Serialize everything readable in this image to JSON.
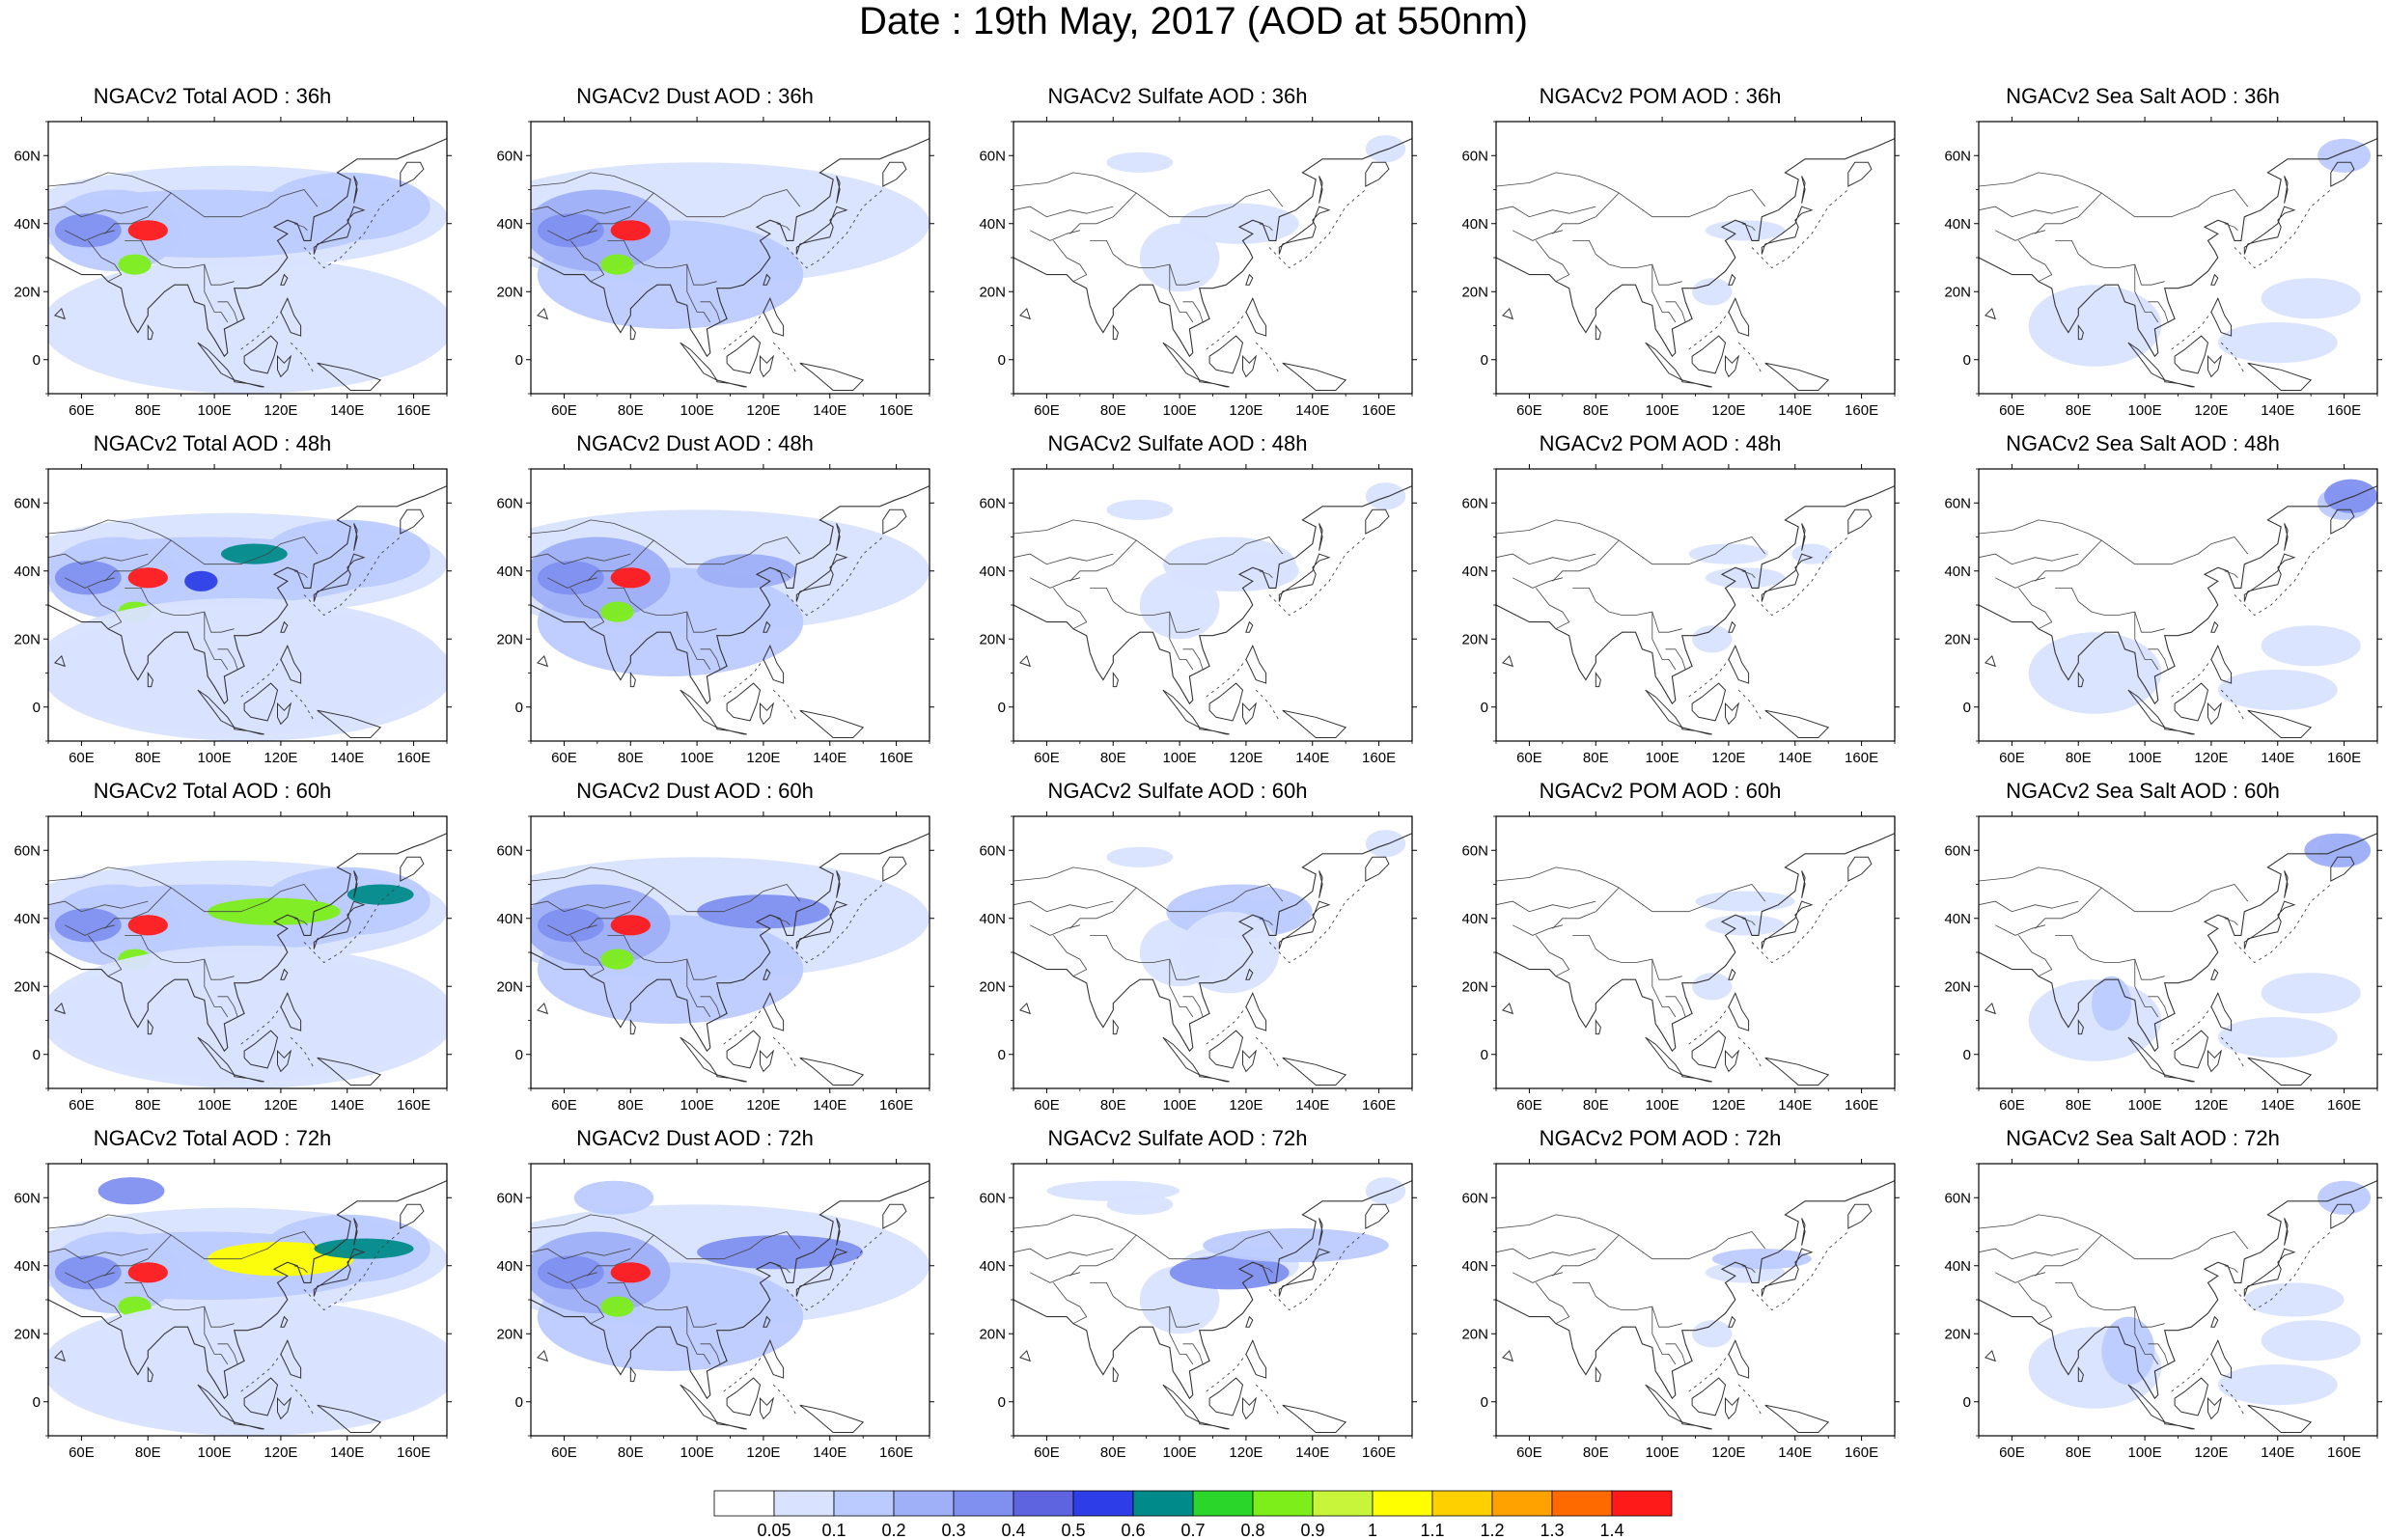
{
  "title": "Date : 19th May, 2017 (AOD at 550nm)",
  "axes": {
    "lat_ticks": [
      "60N",
      "40N",
      "20N",
      "0"
    ],
    "lat_values": [
      60,
      40,
      20,
      0
    ],
    "lon_ticks": [
      "60E",
      "80E",
      "100E",
      "120E",
      "140E",
      "160E"
    ],
    "lon_values": [
      60,
      80,
      100,
      120,
      140,
      160
    ],
    "lon_range": [
      50,
      170
    ],
    "lat_range": [
      -10,
      70
    ]
  },
  "panels": [
    {
      "title": "NGACv2 Total AOD : 36h",
      "field": "total",
      "hour": 36
    },
    {
      "title": "NGACv2 Dust AOD : 36h",
      "field": "dust",
      "hour": 36
    },
    {
      "title": "NGACv2 Sulfate AOD : 36h",
      "field": "sulfate",
      "hour": 36
    },
    {
      "title": "NGACv2 POM AOD : 36h",
      "field": "pom",
      "hour": 36
    },
    {
      "title": "NGACv2 Sea Salt AOD : 36h",
      "field": "seasalt",
      "hour": 36
    },
    {
      "title": "NGACv2 Total AOD : 48h",
      "field": "total",
      "hour": 48
    },
    {
      "title": "NGACv2 Dust AOD : 48h",
      "field": "dust",
      "hour": 48
    },
    {
      "title": "NGACv2 Sulfate AOD : 48h",
      "field": "sulfate",
      "hour": 48
    },
    {
      "title": "NGACv2 POM AOD : 48h",
      "field": "pom",
      "hour": 48
    },
    {
      "title": "NGACv2 Sea Salt AOD : 48h",
      "field": "seasalt",
      "hour": 48
    },
    {
      "title": "NGACv2 Total AOD : 60h",
      "field": "total",
      "hour": 60
    },
    {
      "title": "NGACv2 Dust AOD : 60h",
      "field": "dust",
      "hour": 60
    },
    {
      "title": "NGACv2 Sulfate AOD : 60h",
      "field": "sulfate",
      "hour": 60
    },
    {
      "title": "NGACv2 POM AOD : 60h",
      "field": "pom",
      "hour": 60
    },
    {
      "title": "NGACv2 Sea Salt AOD : 60h",
      "field": "seasalt",
      "hour": 60
    },
    {
      "title": "NGACv2 Total AOD : 72h",
      "field": "total",
      "hour": 72
    },
    {
      "title": "NGACv2 Dust AOD : 72h",
      "field": "dust",
      "hour": 72
    },
    {
      "title": "NGACv2 Sulfate AOD : 72h",
      "field": "sulfate",
      "hour": 72
    },
    {
      "title": "NGACv2 POM AOD : 72h",
      "field": "pom",
      "hour": 72
    },
    {
      "title": "NGACv2 Sea Salt  AOD : 72h",
      "field": "seasalt",
      "hour": 72
    }
  ],
  "colorbar": {
    "labels": [
      "0.05",
      "0.1",
      "0.2",
      "0.3",
      "0.4",
      "0.5",
      "0.6",
      "0.7",
      "0.8",
      "0.9",
      "1",
      "1.1",
      "1.2",
      "1.3",
      "1.4"
    ],
    "colors": [
      "#ffffff",
      "#d9e3ff",
      "#bccbff",
      "#9faff8",
      "#8090f0",
      "#5e63e0",
      "#2d3ee8",
      "#008a8a",
      "#2ad62a",
      "#7dee1a",
      "#c8f53a",
      "#ffff00",
      "#ffd000",
      "#ffa200",
      "#ff6a00",
      "#ff1a1a"
    ]
  }
}
